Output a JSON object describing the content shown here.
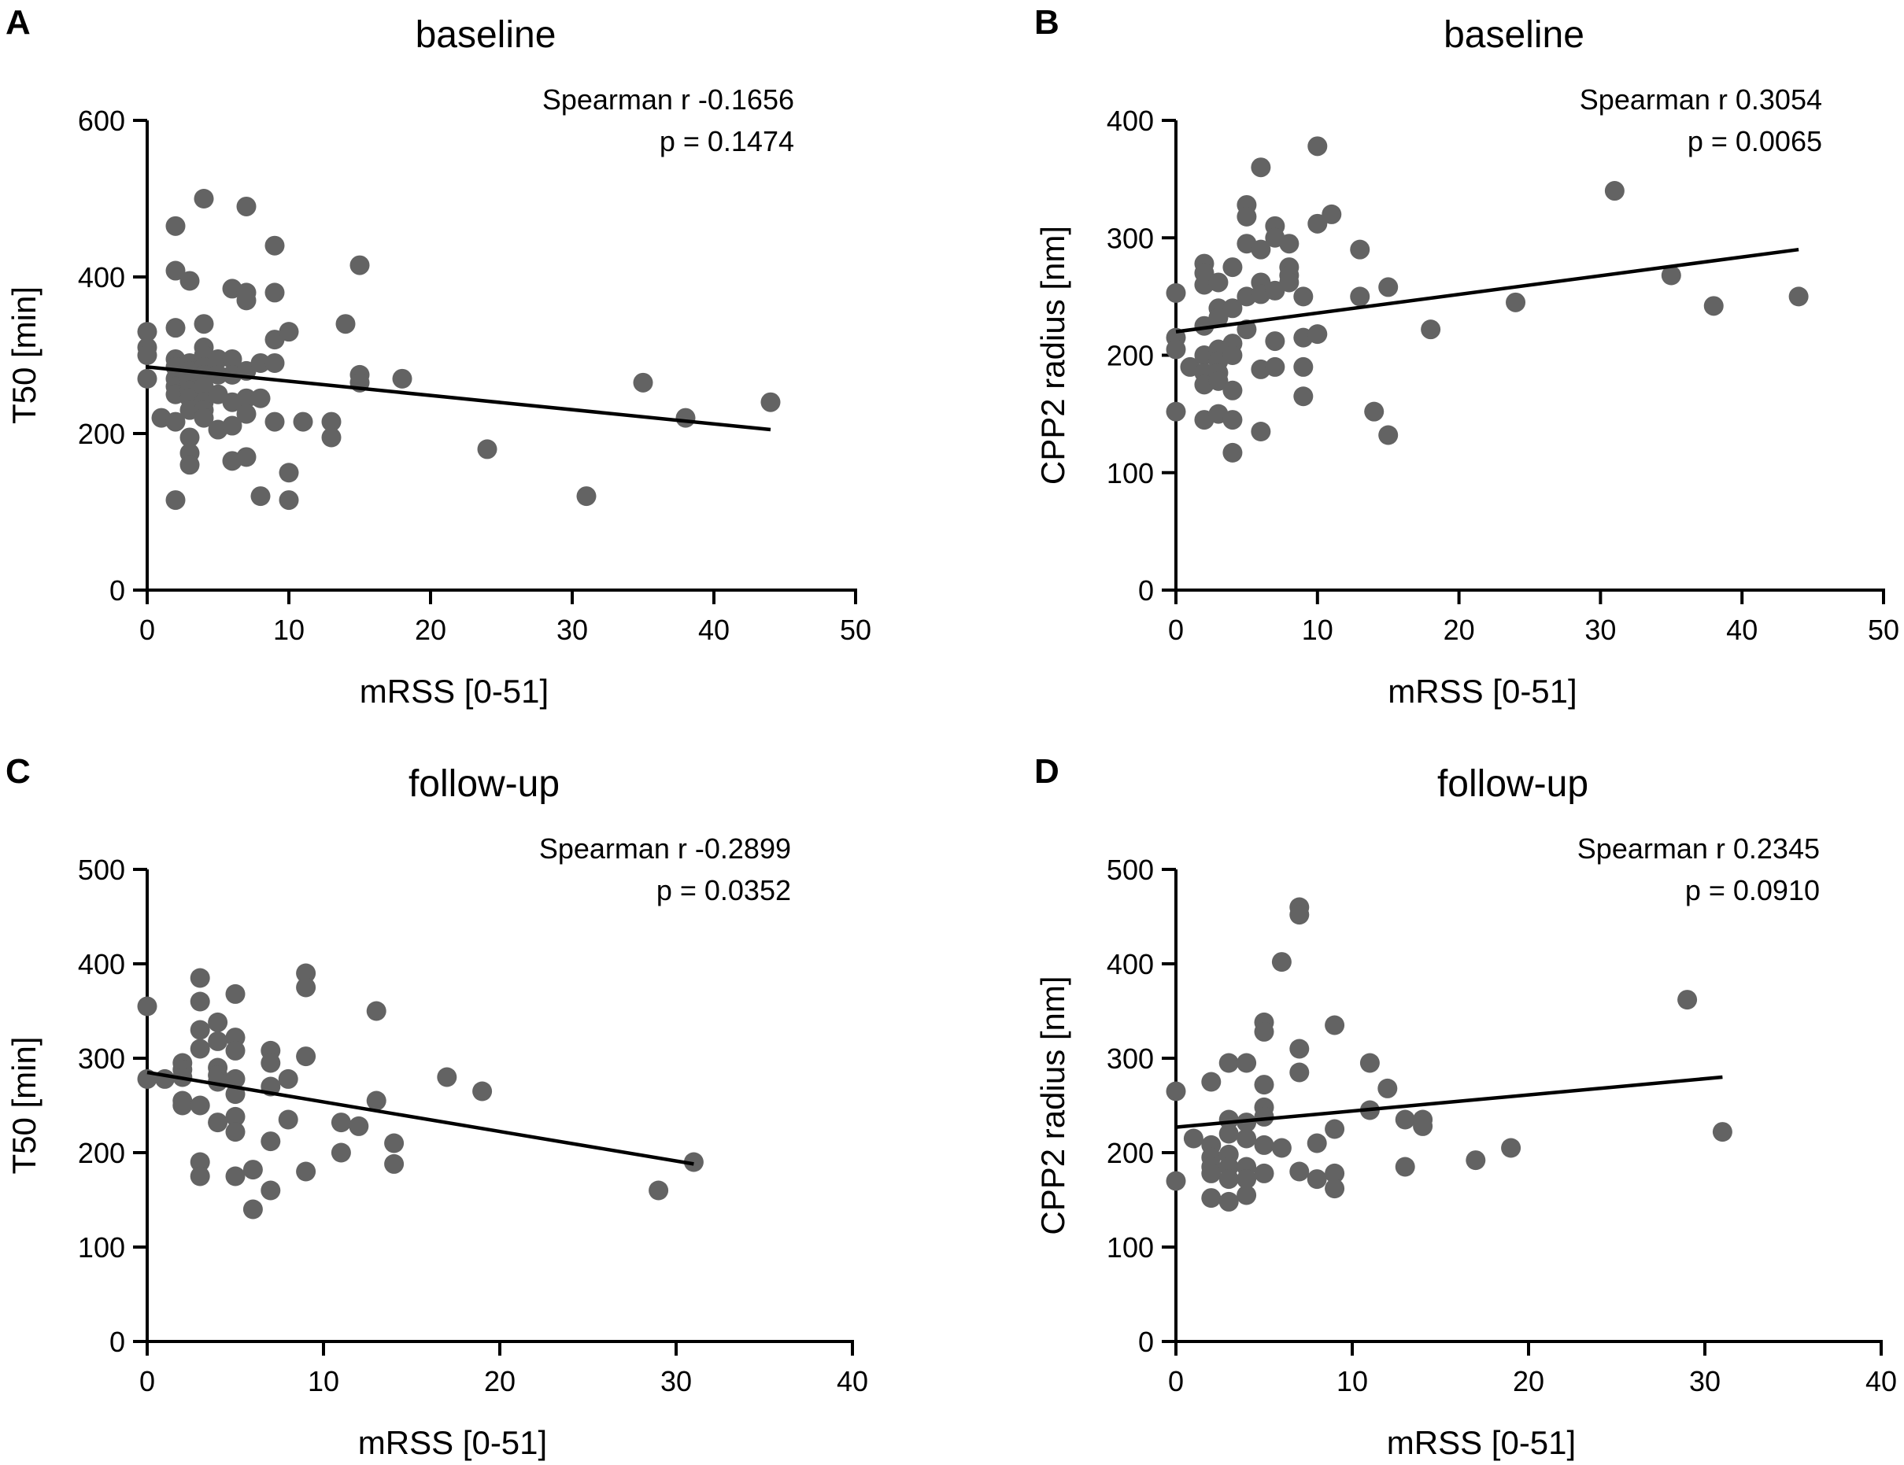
{
  "chart_data": [
    {
      "panel": "A",
      "type": "scatter",
      "title": "baseline",
      "xlabel": "mRSS [0-51]",
      "ylabel": "T50 [min]",
      "xlim": [
        0,
        50
      ],
      "ylim": [
        0,
        600
      ],
      "xticks": [
        0,
        10,
        20,
        30,
        40,
        50
      ],
      "yticks": [
        0,
        200,
        400,
        600
      ],
      "annotation": [
        "Spearman r -0.1656",
        "p = 0.1474"
      ],
      "marker_color": "#636363",
      "regression": {
        "x": [
          0,
          44
        ],
        "y": [
          285,
          205
        ]
      },
      "points": [
        [
          0,
          330
        ],
        [
          0,
          310
        ],
        [
          0,
          300
        ],
        [
          0,
          270
        ],
        [
          1,
          220
        ],
        [
          2,
          465
        ],
        [
          2,
          408
        ],
        [
          2,
          335
        ],
        [
          2,
          295
        ],
        [
          2,
          285
        ],
        [
          2,
          270
        ],
        [
          2,
          260
        ],
        [
          2,
          250
        ],
        [
          2,
          215
        ],
        [
          2,
          115
        ],
        [
          3,
          395
        ],
        [
          3,
          290
        ],
        [
          3,
          280
        ],
        [
          3,
          265
        ],
        [
          3,
          255
        ],
        [
          3,
          245
        ],
        [
          3,
          230
        ],
        [
          3,
          195
        ],
        [
          3,
          175
        ],
        [
          3,
          160
        ],
        [
          4,
          500
        ],
        [
          4,
          340
        ],
        [
          4,
          310
        ],
        [
          4,
          300
        ],
        [
          4,
          285
        ],
        [
          4,
          275
        ],
        [
          4,
          260
        ],
        [
          4,
          240
        ],
        [
          4,
          230
        ],
        [
          4,
          220
        ],
        [
          5,
          295
        ],
        [
          5,
          275
        ],
        [
          5,
          250
        ],
        [
          5,
          205
        ],
        [
          6,
          385
        ],
        [
          6,
          295
        ],
        [
          6,
          275
        ],
        [
          6,
          240
        ],
        [
          6,
          210
        ],
        [
          6,
          165
        ],
        [
          7,
          490
        ],
        [
          7,
          380
        ],
        [
          7,
          370
        ],
        [
          7,
          280
        ],
        [
          7,
          245
        ],
        [
          7,
          225
        ],
        [
          7,
          170
        ],
        [
          8,
          290
        ],
        [
          8,
          245
        ],
        [
          8,
          120
        ],
        [
          9,
          440
        ],
        [
          9,
          380
        ],
        [
          9,
          320
        ],
        [
          9,
          290
        ],
        [
          9,
          215
        ],
        [
          10,
          330
        ],
        [
          10,
          150
        ],
        [
          10,
          115
        ],
        [
          11,
          215
        ],
        [
          13,
          215
        ],
        [
          13,
          195
        ],
        [
          14,
          340
        ],
        [
          15,
          415
        ],
        [
          15,
          275
        ],
        [
          15,
          265
        ],
        [
          18,
          270
        ],
        [
          24,
          180
        ],
        [
          31,
          120
        ],
        [
          35,
          265
        ],
        [
          38,
          220
        ],
        [
          44,
          240
        ]
      ]
    },
    {
      "panel": "B",
      "type": "scatter",
      "title": "baseline",
      "xlabel": "mRSS [0-51]",
      "ylabel": "CPP2 radius [nm]",
      "xlim": [
        0,
        50
      ],
      "ylim": [
        0,
        400
      ],
      "xticks": [
        0,
        10,
        20,
        30,
        40,
        50
      ],
      "yticks": [
        0,
        100,
        200,
        300,
        400
      ],
      "annotation": [
        "Spearman r 0.3054",
        "p = 0.0065"
      ],
      "marker_color": "#636363",
      "regression": {
        "x": [
          0,
          44
        ],
        "y": [
          220,
          290
        ]
      },
      "points": [
        [
          0,
          253
        ],
        [
          0,
          215
        ],
        [
          0,
          205
        ],
        [
          0,
          152
        ],
        [
          1,
          190
        ],
        [
          2,
          278
        ],
        [
          2,
          270
        ],
        [
          2,
          260
        ],
        [
          2,
          225
        ],
        [
          2,
          200
        ],
        [
          2,
          185
        ],
        [
          2,
          175
        ],
        [
          2,
          145
        ],
        [
          3,
          262
        ],
        [
          3,
          240
        ],
        [
          3,
          232
        ],
        [
          3,
          205
        ],
        [
          3,
          195
        ],
        [
          3,
          185
        ],
        [
          3,
          178
        ],
        [
          3,
          150
        ],
        [
          4,
          275
        ],
        [
          4,
          240
        ],
        [
          4,
          210
        ],
        [
          4,
          200
        ],
        [
          4,
          170
        ],
        [
          4,
          145
        ],
        [
          4,
          117
        ],
        [
          5,
          328
        ],
        [
          5,
          318
        ],
        [
          5,
          295
        ],
        [
          5,
          250
        ],
        [
          5,
          222
        ],
        [
          6,
          360
        ],
        [
          6,
          290
        ],
        [
          6,
          262
        ],
        [
          6,
          252
        ],
        [
          6,
          188
        ],
        [
          6,
          135
        ],
        [
          7,
          310
        ],
        [
          7,
          300
        ],
        [
          7,
          255
        ],
        [
          7,
          212
        ],
        [
          7,
          190
        ],
        [
          8,
          295
        ],
        [
          8,
          275
        ],
        [
          8,
          268
        ],
        [
          8,
          262
        ],
        [
          9,
          250
        ],
        [
          9,
          215
        ],
        [
          9,
          190
        ],
        [
          9,
          165
        ],
        [
          10,
          378
        ],
        [
          10,
          312
        ],
        [
          10,
          218
        ],
        [
          11,
          320
        ],
        [
          13,
          290
        ],
        [
          13,
          250
        ],
        [
          14,
          152
        ],
        [
          15,
          258
        ],
        [
          15,
          132
        ],
        [
          18,
          222
        ],
        [
          24,
          245
        ],
        [
          31,
          340
        ],
        [
          35,
          268
        ],
        [
          38,
          242
        ],
        [
          44,
          250
        ]
      ]
    },
    {
      "panel": "C",
      "type": "scatter",
      "title": "follow-up",
      "xlabel": "mRSS [0-51]",
      "ylabel": "T50 [min]",
      "xlim": [
        0,
        40
      ],
      "ylim": [
        0,
        500
      ],
      "xticks": [
        0,
        10,
        20,
        30,
        40
      ],
      "yticks": [
        0,
        100,
        200,
        300,
        400,
        500
      ],
      "annotation": [
        "Spearman r -0.2899",
        "p = 0.0352"
      ],
      "marker_color": "#636363",
      "regression": {
        "x": [
          0,
          31
        ],
        "y": [
          285,
          188
        ]
      },
      "points": [
        [
          0,
          355
        ],
        [
          0,
          278
        ],
        [
          1,
          278
        ],
        [
          2,
          295
        ],
        [
          2,
          288
        ],
        [
          2,
          280
        ],
        [
          2,
          255
        ],
        [
          2,
          250
        ],
        [
          3,
          385
        ],
        [
          3,
          360
        ],
        [
          3,
          330
        ],
        [
          3,
          310
        ],
        [
          3,
          250
        ],
        [
          3,
          190
        ],
        [
          3,
          175
        ],
        [
          4,
          338
        ],
        [
          4,
          318
        ],
        [
          4,
          290
        ],
        [
          4,
          282
        ],
        [
          4,
          275
        ],
        [
          4,
          232
        ],
        [
          5,
          368
        ],
        [
          5,
          322
        ],
        [
          5,
          308
        ],
        [
          5,
          278
        ],
        [
          5,
          262
        ],
        [
          5,
          238
        ],
        [
          5,
          222
        ],
        [
          5,
          175
        ],
        [
          6,
          182
        ],
        [
          6,
          140
        ],
        [
          7,
          308
        ],
        [
          7,
          295
        ],
        [
          7,
          270
        ],
        [
          7,
          212
        ],
        [
          7,
          160
        ],
        [
          8,
          278
        ],
        [
          8,
          235
        ],
        [
          9,
          390
        ],
        [
          9,
          375
        ],
        [
          9,
          302
        ],
        [
          9,
          180
        ],
        [
          11,
          232
        ],
        [
          11,
          200
        ],
        [
          12,
          228
        ],
        [
          13,
          350
        ],
        [
          13,
          255
        ],
        [
          14,
          210
        ],
        [
          14,
          188
        ],
        [
          17,
          280
        ],
        [
          19,
          265
        ],
        [
          29,
          160
        ],
        [
          31,
          190
        ]
      ]
    },
    {
      "panel": "D",
      "type": "scatter",
      "title": "follow-up",
      "xlabel": "mRSS [0-51]",
      "ylabel": "CPP2 radius [nm]",
      "xlim": [
        0,
        40
      ],
      "ylim": [
        0,
        500
      ],
      "xticks": [
        0,
        10,
        20,
        30,
        40
      ],
      "yticks": [
        0,
        100,
        200,
        300,
        400,
        500
      ],
      "annotation": [
        "Spearman r 0.2345",
        "p = 0.0910"
      ],
      "marker_color": "#636363",
      "regression": {
        "x": [
          0,
          31
        ],
        "y": [
          227,
          280
        ]
      },
      "points": [
        [
          0,
          265
        ],
        [
          0,
          170
        ],
        [
          1,
          215
        ],
        [
          2,
          275
        ],
        [
          2,
          208
        ],
        [
          2,
          195
        ],
        [
          2,
          185
        ],
        [
          2,
          178
        ],
        [
          2,
          152
        ],
        [
          3,
          295
        ],
        [
          3,
          235
        ],
        [
          3,
          220
        ],
        [
          3,
          198
        ],
        [
          3,
          185
        ],
        [
          3,
          172
        ],
        [
          3,
          148
        ],
        [
          4,
          295
        ],
        [
          4,
          232
        ],
        [
          4,
          215
        ],
        [
          4,
          185
        ],
        [
          4,
          172
        ],
        [
          4,
          155
        ],
        [
          5,
          338
        ],
        [
          5,
          328
        ],
        [
          5,
          272
        ],
        [
          5,
          248
        ],
        [
          5,
          238
        ],
        [
          5,
          208
        ],
        [
          5,
          178
        ],
        [
          6,
          402
        ],
        [
          6,
          205
        ],
        [
          7,
          460
        ],
        [
          7,
          452
        ],
        [
          7,
          310
        ],
        [
          7,
          285
        ],
        [
          7,
          180
        ],
        [
          8,
          210
        ],
        [
          8,
          172
        ],
        [
          9,
          335
        ],
        [
          9,
          225
        ],
        [
          9,
          178
        ],
        [
          9,
          162
        ],
        [
          11,
          295
        ],
        [
          11,
          245
        ],
        [
          12,
          268
        ],
        [
          13,
          235
        ],
        [
          13,
          185
        ],
        [
          14,
          235
        ],
        [
          14,
          228
        ],
        [
          17,
          192
        ],
        [
          19,
          205
        ],
        [
          29,
          362
        ],
        [
          31,
          222
        ]
      ]
    }
  ]
}
